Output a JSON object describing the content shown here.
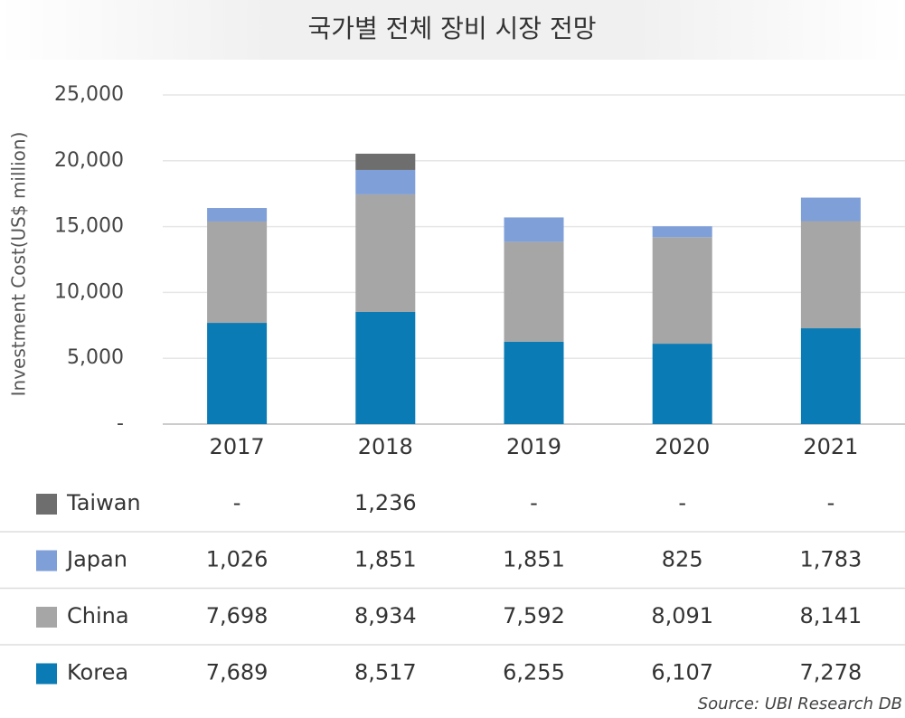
{
  "chart_data": {
    "type": "bar",
    "stacked": true,
    "title": "국가별 전체 장비 시장 전망",
    "y_label": "Investment Cost(US$ million)",
    "source": "Source: UBI Research DB",
    "categories": [
      "2017",
      "2018",
      "2019",
      "2020",
      "2021"
    ],
    "series": [
      {
        "name": "Korea",
        "color": "#0a7bb5",
        "values": [
          7689,
          8517,
          6255,
          6107,
          7278
        ],
        "value_labels": [
          "7,689",
          "8,517",
          "6,255",
          "6,107",
          "7,278"
        ]
      },
      {
        "name": "China",
        "color": "#a6a6a6",
        "values": [
          7698,
          8934,
          7592,
          8091,
          8141
        ],
        "value_labels": [
          "7,698",
          "8,934",
          "7,592",
          "8,091",
          "8,141"
        ]
      },
      {
        "name": "Japan",
        "color": "#7f9fd8",
        "values": [
          1026,
          1851,
          1851,
          825,
          1783
        ],
        "value_labels": [
          "1,026",
          "1,851",
          "1,851",
          "825",
          "1,783"
        ]
      },
      {
        "name": "Taiwan",
        "color": "#6e6e6e",
        "values": [
          null,
          1236,
          null,
          null,
          null
        ],
        "value_labels": [
          "-",
          "1,236",
          "-",
          "-",
          "-"
        ]
      }
    ],
    "ylim": [
      0,
      25000
    ],
    "yticks": [
      {
        "value": 0,
        "label": "-"
      },
      {
        "value": 5000,
        "label": "5,000"
      },
      {
        "value": 10000,
        "label": "10,000"
      },
      {
        "value": 15000,
        "label": "15,000"
      },
      {
        "value": 20000,
        "label": "20,000"
      },
      {
        "value": 25000,
        "label": "25,000"
      }
    ],
    "grid": true
  }
}
